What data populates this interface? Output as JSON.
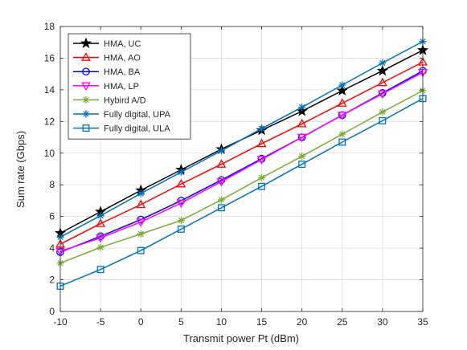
{
  "chart_data": {
    "type": "line",
    "title": "",
    "xlabel": "Transmit power Pt (dBm)",
    "ylabel": "Sum rate (Gbps)",
    "x": [
      -10,
      -5,
      0,
      5,
      10,
      15,
      20,
      25,
      30,
      35
    ],
    "xlim": [
      -10,
      35
    ],
    "ylim": [
      0,
      18
    ],
    "xticks": [
      -10,
      -5,
      0,
      5,
      10,
      15,
      20,
      25,
      30,
      35
    ],
    "yticks": [
      0,
      2,
      4,
      6,
      8,
      10,
      12,
      14,
      16,
      18
    ],
    "grid": true,
    "legend_position": "top-left",
    "series": [
      {
        "name": "HMA, UC",
        "color": "#000000",
        "marker": "pentagram",
        "values": [
          4.95,
          6.3,
          7.65,
          8.95,
          10.25,
          11.45,
          12.65,
          13.95,
          15.2,
          16.5
        ]
      },
      {
        "name": "HMA, AO",
        "color": "#ff0000",
        "marker": "triangle-up",
        "values": [
          4.25,
          5.55,
          6.75,
          8.05,
          9.3,
          10.6,
          11.85,
          13.15,
          14.45,
          15.75
        ]
      },
      {
        "name": "HMA, BA",
        "color": "#0000ff",
        "marker": "circle",
        "values": [
          3.75,
          4.75,
          5.8,
          7.0,
          8.3,
          9.65,
          11.0,
          12.4,
          13.8,
          15.2
        ]
      },
      {
        "name": "HMA, LP",
        "color": "#ff00ff",
        "marker": "triangle-down",
        "values": [
          3.8,
          4.65,
          5.65,
          6.85,
          8.2,
          9.6,
          11.0,
          12.4,
          13.75,
          15.1
        ]
      },
      {
        "name": "Hybird A/D",
        "color": "#77ac30",
        "marker": "asterisk",
        "values": [
          3.05,
          4.05,
          4.9,
          5.75,
          7.05,
          8.45,
          9.8,
          11.2,
          12.6,
          13.95
        ]
      },
      {
        "name": "Fully digital, UPA",
        "color": "#0072bd",
        "marker": "asterisk",
        "values": [
          4.7,
          6.05,
          7.45,
          8.8,
          10.15,
          11.55,
          12.9,
          14.3,
          15.7,
          17.05
        ]
      },
      {
        "name": "Fully digital, ULA",
        "color": "#0072bd",
        "marker": "square",
        "values": [
          1.6,
          2.65,
          3.85,
          5.2,
          6.55,
          7.9,
          9.3,
          10.7,
          12.05,
          13.45
        ]
      }
    ]
  }
}
